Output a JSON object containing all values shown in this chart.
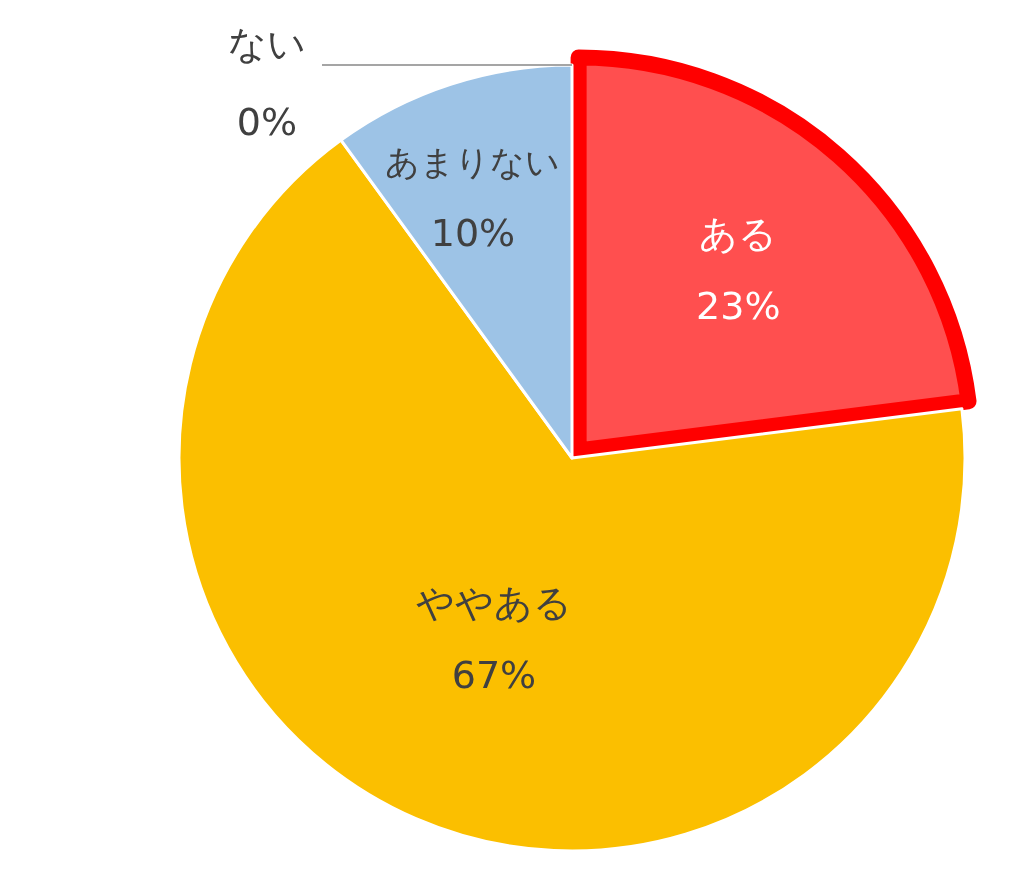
{
  "chart_data": {
    "type": "pie",
    "categories": [
      "ある",
      "ややある",
      "あまりない",
      "ない"
    ],
    "values": [
      23,
      67,
      10,
      0
    ],
    "colors": [
      "#ff4f4f",
      "#fbbf00",
      "#9dc3e6",
      "#a5a5a5"
    ],
    "value_labels": [
      "23%",
      "67%",
      "10%",
      "0%"
    ]
  }
}
